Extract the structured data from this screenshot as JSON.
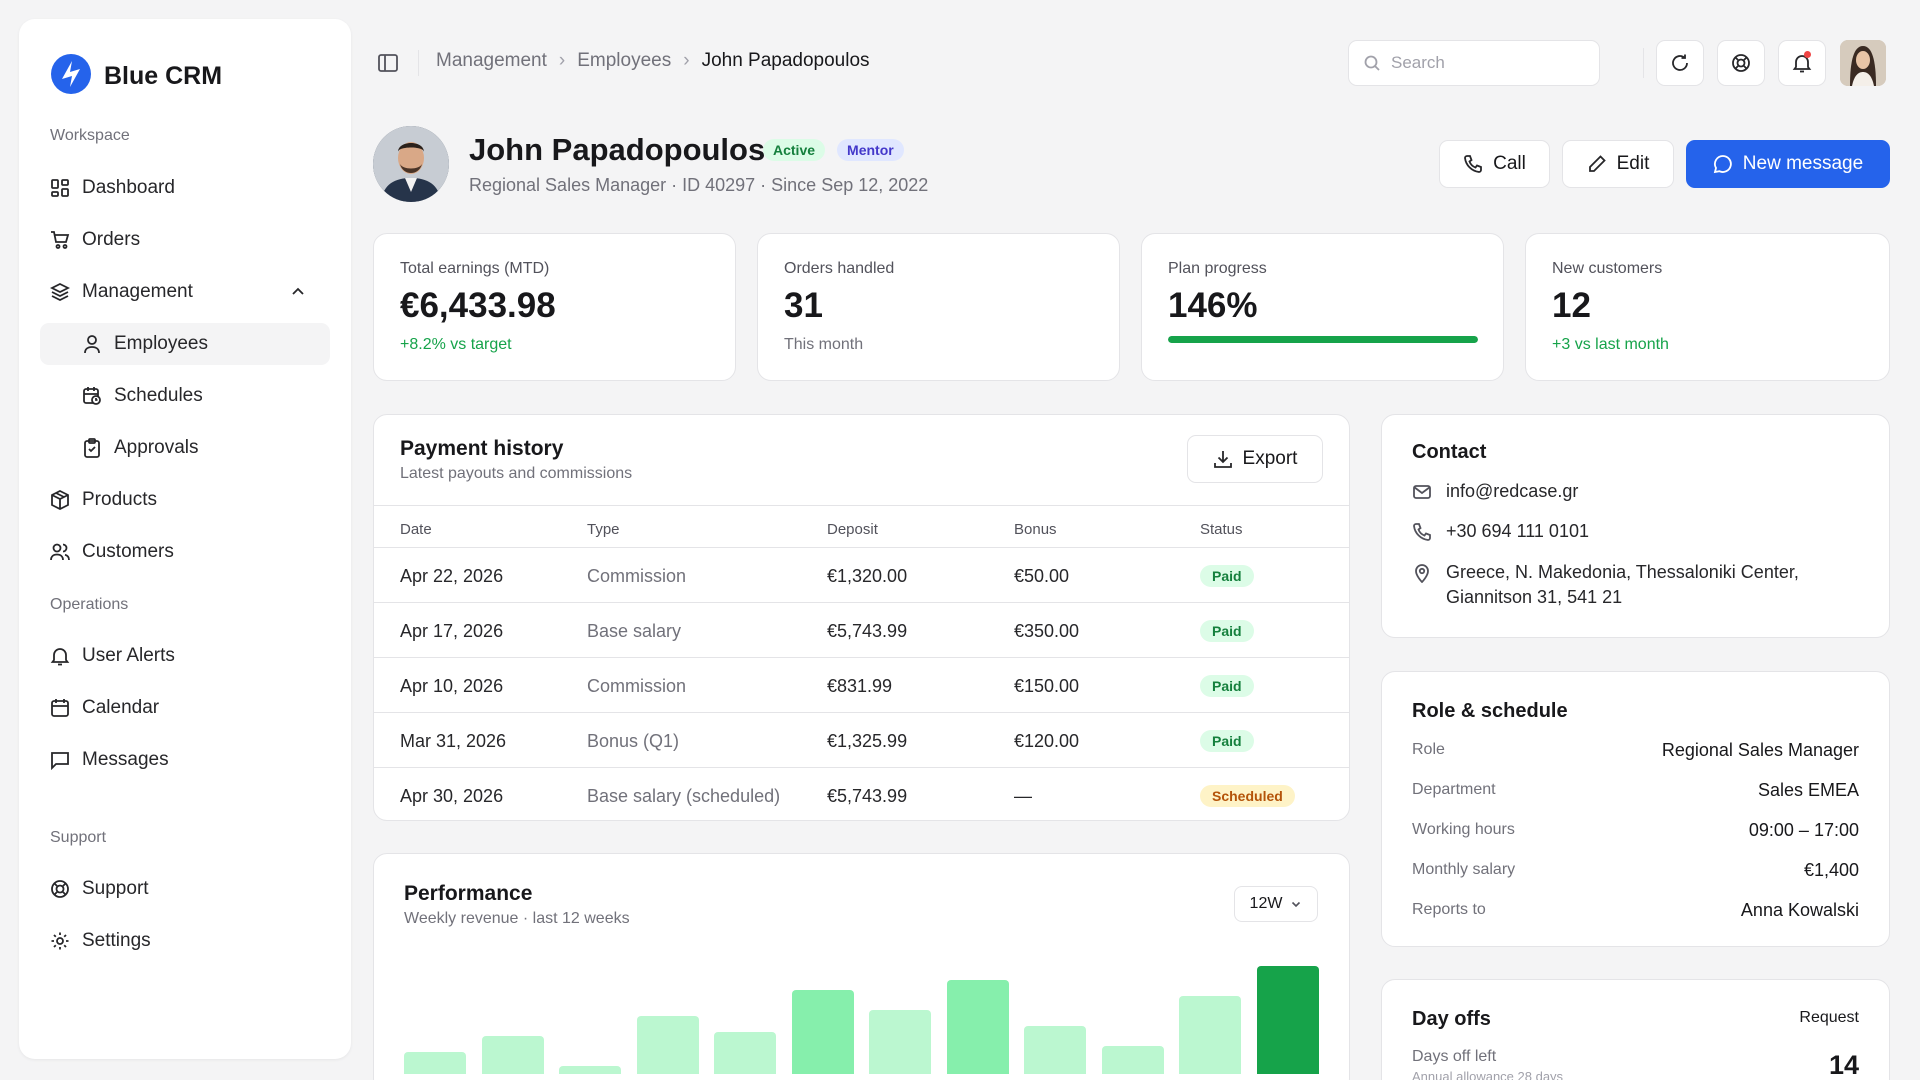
{
  "app": {
    "brand": "Blue CRM"
  },
  "sidebar": {
    "workspace_label": "Workspace",
    "operations_label": "Operations",
    "support_label": "Support",
    "items": [
      {
        "label": "Dashboard"
      },
      {
        "label": "Orders"
      },
      {
        "label": "Management"
      },
      {
        "label": "Employees"
      },
      {
        "label": "Schedules"
      },
      {
        "label": "Approvals"
      },
      {
        "label": "Products"
      },
      {
        "label": "Customers"
      },
      {
        "label": "User Alerts"
      },
      {
        "label": "Calendar"
      },
      {
        "label": "Messages"
      },
      {
        "label": "Support"
      },
      {
        "label": "Settings"
      }
    ]
  },
  "breadcrumb": [
    "Management",
    "Employees",
    "John Papadopoulos"
  ],
  "search": {
    "placeholder": "Search"
  },
  "profile": {
    "name": "John Papadopoulos",
    "badge_active": "Active",
    "badge_mentor": "Mentor",
    "subtitle": "Regional Sales Manager · ID 40297 · Since Sep 12, 2022"
  },
  "actions": {
    "call": "Call",
    "edit": "Edit",
    "new_message": "New message"
  },
  "stats": [
    {
      "label": "Total earnings (MTD)",
      "value": "€6,433.98",
      "sub": "+8.2% vs target"
    },
    {
      "label": "Orders handled",
      "value": "31",
      "sub": "This month"
    },
    {
      "label": "Plan progress",
      "value": "146%",
      "progress": 1.0
    },
    {
      "label": "New customers",
      "value": "12",
      "sub": "+3 vs last month"
    }
  ],
  "payments": {
    "title": "Payment history",
    "subtitle": "Latest payouts and commissions",
    "export": "Export",
    "headers": [
      "Date",
      "Type",
      "Deposit",
      "Bonus",
      "Status"
    ],
    "rows": [
      {
        "date": "Apr 22, 2026",
        "type": "Commission",
        "deposit": "€1,320.00",
        "bonus": "€50.00",
        "status": "Paid"
      },
      {
        "date": "Apr 17, 2026",
        "type": "Base salary",
        "deposit": "€5,743.99",
        "bonus": "€350.00",
        "status": "Paid"
      },
      {
        "date": "Apr 10, 2026",
        "type": "Commission",
        "deposit": "€831.99",
        "bonus": "€150.00",
        "status": "Paid"
      },
      {
        "date": "Mar 31, 2026",
        "type": "Bonus (Q1)",
        "deposit": "€1,325.99",
        "bonus": "€120.00",
        "status": "Paid"
      },
      {
        "date": "Apr 30, 2026",
        "type": "Base salary (scheduled)",
        "deposit": "€5,743.99",
        "bonus": "—",
        "status": "Scheduled"
      }
    ]
  },
  "performance": {
    "title": "Performance",
    "subtitle": "Weekly revenue · last 12 weeks",
    "range": "12W"
  },
  "chart_data": {
    "type": "bar",
    "values": [
      22,
      38,
      8,
      58,
      42,
      84,
      64,
      94,
      48,
      28,
      78,
      108
    ],
    "colors": [
      "#bbf7d0",
      "#bbf7d0",
      "#bbf7d0",
      "#bbf7d0",
      "#bbf7d0",
      "#86efac",
      "#bbf7d0",
      "#86efac",
      "#bbf7d0",
      "#bbf7d0",
      "#bbf7d0",
      "#16a34a"
    ],
    "title": "Performance",
    "xlabel": "",
    "ylabel": ""
  },
  "contact": {
    "title": "Contact",
    "email": "info@redcase.gr",
    "phone": "+30 694 111 0101",
    "address_line1": "Greece, N. Makedonia, Thessaloniki Center,",
    "address_line2": "Giannitson 31, 541 21"
  },
  "role": {
    "title": "Role & schedule",
    "items": [
      {
        "key": "Role",
        "value": "Regional Sales Manager"
      },
      {
        "key": "Department",
        "value": "Sales EMEA"
      },
      {
        "key": "Working hours",
        "value": "09:00 – 17:00"
      },
      {
        "key": "Monthly salary",
        "value": "€1,400"
      },
      {
        "key": "Reports to",
        "value": "Anna Kowalski"
      }
    ]
  },
  "dayoffs": {
    "title": "Day offs",
    "request": "Request",
    "left_label": "Days off left",
    "allowance": "Annual allowance 28 days",
    "left_value": "14"
  },
  "colors": {
    "accent": "#2563eb",
    "success": "#16a34a"
  }
}
